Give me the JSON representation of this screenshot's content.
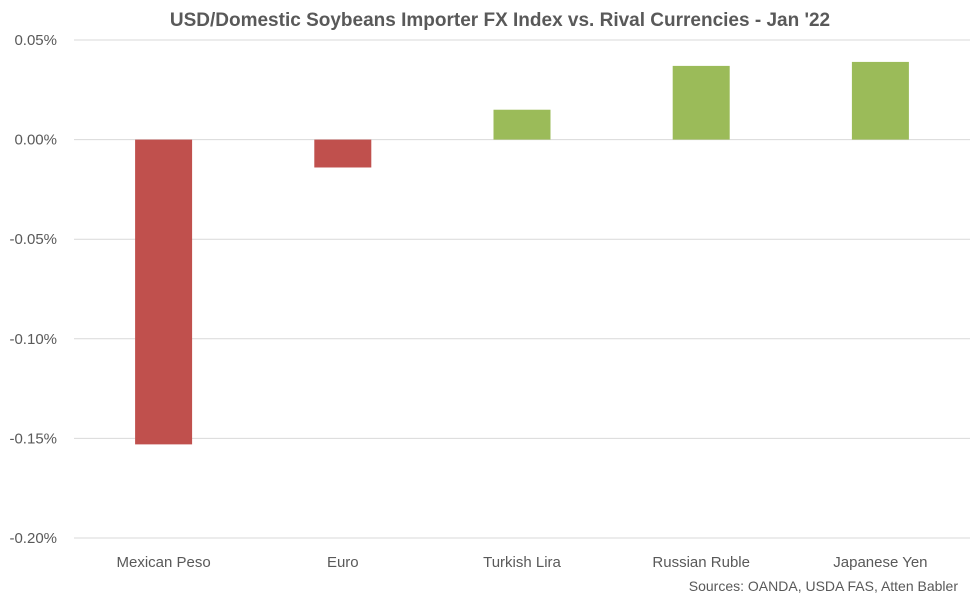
{
  "chart_data": {
    "type": "bar",
    "title": "USD/Domestic Soybeans Importer FX Index vs. Rival Currencies - Jan '22",
    "categories": [
      "Mexican Peso",
      "Euro",
      "Turkish Lira",
      "Russian Ruble",
      "Japanese Yen"
    ],
    "values": [
      -0.153,
      -0.014,
      0.015,
      0.037,
      0.039
    ],
    "value_unit": "%",
    "ylim": [
      -0.2,
      0.05
    ],
    "yticks": [
      "0.05%",
      "0.00%",
      "-0.05%",
      "-0.10%",
      "-0.15%",
      "-0.20%"
    ],
    "ytick_values": [
      0.05,
      0.0,
      -0.05,
      -0.1,
      -0.15,
      -0.2
    ],
    "grid": true,
    "colors": {
      "positive": "#9bbb59",
      "negative": "#c0504d",
      "gridline": "#d9d9d9",
      "text": "#595959"
    },
    "source": "Sources: OANDA, USDA FAS, Atten Babler"
  }
}
